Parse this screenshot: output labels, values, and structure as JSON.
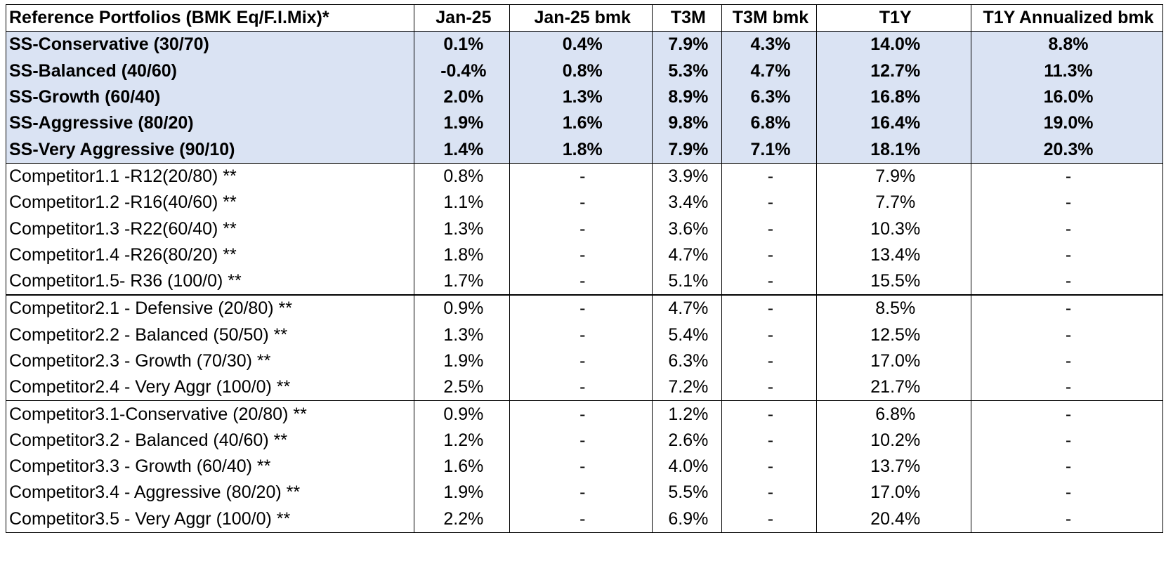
{
  "headers": [
    "Reference Portfolios (BMK Eq/F.I.Mix)*",
    "Jan-25",
    "Jan-25 bmk",
    "T3M",
    "T3M bmk",
    "T1Y",
    "T1Y Annualized bmk"
  ],
  "rows": [
    {
      "name": "SS-Conservative (30/70)",
      "jan25": "0.1%",
      "jan25_bmk": "0.4%",
      "t3m": "7.9%",
      "t3m_bmk": "4.3%",
      "t1y": "14.0%",
      "t1y_bmk": "8.8%"
    },
    {
      "name": "SS-Balanced (40/60)",
      "jan25": "-0.4%",
      "jan25_bmk": "0.8%",
      "t3m": "5.3%",
      "t3m_bmk": "4.7%",
      "t1y": "12.7%",
      "t1y_bmk": "11.3%"
    },
    {
      "name": "SS-Growth (60/40)",
      "jan25": "2.0%",
      "jan25_bmk": "1.3%",
      "t3m": "8.9%",
      "t3m_bmk": "6.3%",
      "t1y": "16.8%",
      "t1y_bmk": "16.0%"
    },
    {
      "name": "SS-Aggressive (80/20)",
      "jan25": "1.9%",
      "jan25_bmk": "1.6%",
      "t3m": "9.8%",
      "t3m_bmk": "6.8%",
      "t1y": "16.4%",
      "t1y_bmk": "19.0%"
    },
    {
      "name": "SS-Very Aggressive (90/10)",
      "jan25": "1.4%",
      "jan25_bmk": "1.8%",
      "t3m": "7.9%",
      "t3m_bmk": "7.1%",
      "t1y": "18.1%",
      "t1y_bmk": "20.3%"
    },
    {
      "name": "Competitor1.1 -R12(20/80) **",
      "jan25": "0.8%",
      "jan25_bmk": "-",
      "t3m": "3.9%",
      "t3m_bmk": "-",
      "t1y": "7.9%",
      "t1y_bmk": "-"
    },
    {
      "name": "Competitor1.2 -R16(40/60) **",
      "jan25": "1.1%",
      "jan25_bmk": "-",
      "t3m": "3.4%",
      "t3m_bmk": "-",
      "t1y": "7.7%",
      "t1y_bmk": "-"
    },
    {
      "name": "Competitor1.3 -R22(60/40) **",
      "jan25": "1.3%",
      "jan25_bmk": "-",
      "t3m": "3.6%",
      "t3m_bmk": "-",
      "t1y": "10.3%",
      "t1y_bmk": "-"
    },
    {
      "name": "Competitor1.4 -R26(80/20) **",
      "jan25": "1.8%",
      "jan25_bmk": "-",
      "t3m": "4.7%",
      "t3m_bmk": "-",
      "t1y": "13.4%",
      "t1y_bmk": "-"
    },
    {
      "name": "Competitor1.5- R36 (100/0) **",
      "jan25": "1.7%",
      "jan25_bmk": "-",
      "t3m": "5.1%",
      "t3m_bmk": "-",
      "t1y": "15.5%",
      "t1y_bmk": "-"
    },
    {
      "name": "Competitor2.1  - Defensive  (20/80) **",
      "jan25": "0.9%",
      "jan25_bmk": "-",
      "t3m": "4.7%",
      "t3m_bmk": "-",
      "t1y": "8.5%",
      "t1y_bmk": "-"
    },
    {
      "name": "Competitor2.2  - Balanced (50/50) **",
      "jan25": "1.3%",
      "jan25_bmk": "-",
      "t3m": "5.4%",
      "t3m_bmk": "-",
      "t1y": "12.5%",
      "t1y_bmk": "-"
    },
    {
      "name": "Competitor2.3  - Growth  (70/30) **",
      "jan25": "1.9%",
      "jan25_bmk": "-",
      "t3m": "6.3%",
      "t3m_bmk": "-",
      "t1y": "17.0%",
      "t1y_bmk": "-"
    },
    {
      "name": "Competitor2.4  - Very Aggr  (100/0) **",
      "jan25": "2.5%",
      "jan25_bmk": "-",
      "t3m": "7.2%",
      "t3m_bmk": "-",
      "t1y": "21.7%",
      "t1y_bmk": "-"
    },
    {
      "name": "Competitor3.1-Conservative (20/80) **",
      "jan25": "0.9%",
      "jan25_bmk": "-",
      "t3m": "1.2%",
      "t3m_bmk": "-",
      "t1y": "6.8%",
      "t1y_bmk": "-"
    },
    {
      "name": "Competitor3.2 - Balanced  (40/60) **",
      "jan25": "1.2%",
      "jan25_bmk": "-",
      "t3m": "2.6%",
      "t3m_bmk": "-",
      "t1y": "10.2%",
      "t1y_bmk": "-"
    },
    {
      "name": "Competitor3.3 - Growth  (60/40) **",
      "jan25": "1.6%",
      "jan25_bmk": "-",
      "t3m": "4.0%",
      "t3m_bmk": "-",
      "t1y": "13.7%",
      "t1y_bmk": "-"
    },
    {
      "name": "Competitor3.4 - Aggressive  (80/20) **",
      "jan25": "1.9%",
      "jan25_bmk": "-",
      "t3m": "5.5%",
      "t3m_bmk": "-",
      "t1y": "17.0%",
      "t1y_bmk": "-"
    },
    {
      "name": "Competitor3.5  - Very Aggr (100/0) **",
      "jan25": "2.2%",
      "jan25_bmk": "-",
      "t3m": "6.9%",
      "t3m_bmk": "-",
      "t1y": "20.4%",
      "t1y_bmk": "-"
    }
  ],
  "colors": {
    "highlight_fill": "#dae3f3",
    "border": "#000000",
    "text": "#000000"
  }
}
